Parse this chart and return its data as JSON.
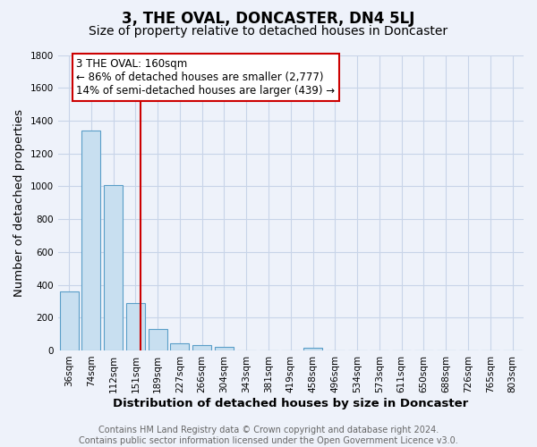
{
  "title": "3, THE OVAL, DONCASTER, DN4 5LJ",
  "subtitle": "Size of property relative to detached houses in Doncaster",
  "xlabel": "Distribution of detached houses by size in Doncaster",
  "ylabel": "Number of detached properties",
  "bar_labels": [
    "36sqm",
    "74sqm",
    "112sqm",
    "151sqm",
    "189sqm",
    "227sqm",
    "266sqm",
    "304sqm",
    "343sqm",
    "381sqm",
    "419sqm",
    "458sqm",
    "496sqm",
    "534sqm",
    "573sqm",
    "611sqm",
    "650sqm",
    "688sqm",
    "726sqm",
    "765sqm",
    "803sqm"
  ],
  "bar_values": [
    360,
    1340,
    1010,
    290,
    130,
    45,
    30,
    20,
    0,
    0,
    0,
    15,
    0,
    0,
    0,
    0,
    0,
    0,
    0,
    0,
    0
  ],
  "bar_color": "#c8dff0",
  "bar_edge_color": "#5a9ec8",
  "ylim": [
    0,
    1800
  ],
  "yticks": [
    0,
    200,
    400,
    600,
    800,
    1000,
    1200,
    1400,
    1600,
    1800
  ],
  "annotation_title": "3 THE OVAL: 160sqm",
  "annotation_line1": "← 86% of detached houses are smaller (2,777)",
  "annotation_line2": "14% of semi-detached houses are larger (439) →",
  "annotation_box_color": "#ffffff",
  "annotation_box_edge": "#cc0000",
  "vline_color": "#cc0000",
  "footer_line1": "Contains HM Land Registry data © Crown copyright and database right 2024.",
  "footer_line2": "Contains public sector information licensed under the Open Government Licence v3.0.",
  "background_color": "#eef2fa",
  "grid_color": "#c8d4e8",
  "title_fontsize": 12,
  "subtitle_fontsize": 10,
  "axis_label_fontsize": 9.5,
  "tick_fontsize": 7.5,
  "footer_fontsize": 7,
  "annotation_fontsize": 8.5
}
